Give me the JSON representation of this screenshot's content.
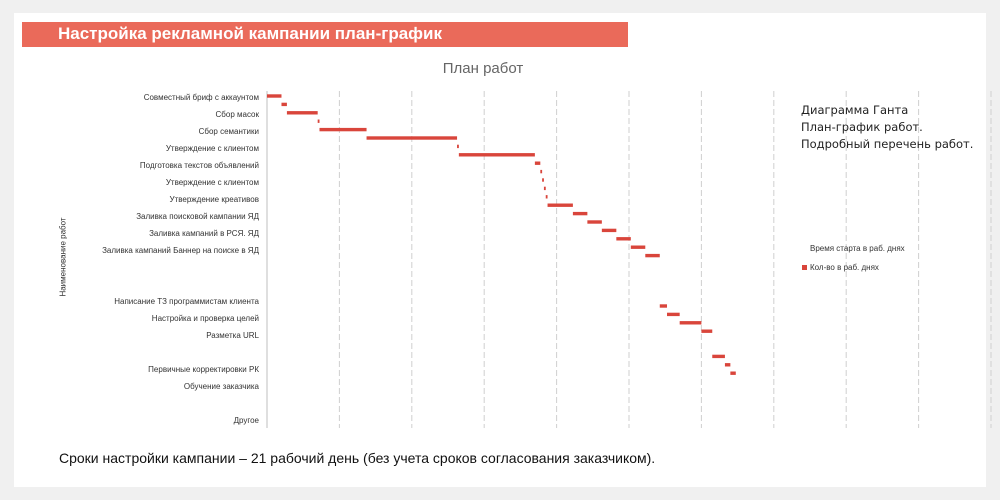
{
  "banner": {
    "title": "Настройка рекламной кампании план-график"
  },
  "chart_data": {
    "type": "bar",
    "subtype": "gantt",
    "title": "План работ",
    "ylabel": "Наименование работ",
    "xlabel": "",
    "grid": "vertical",
    "legend_position": "right",
    "legend": [
      "Время старта в раб. днях",
      "Кол-во в раб. днях"
    ],
    "bar_color": "#d9453b",
    "x_unit": "рабочие дни",
    "xlim": [
      0,
      21
    ],
    "categories": [
      "Совместный бриф с аккаунтом",
      "Сбор масок",
      "Сбор семантики",
      "Утверждение с клиентом",
      "Подготовка текстов объявлений",
      "Утверждение с клиентом",
      "Утверждение креативов",
      "Заливка поисковой кампании ЯД",
      "Заливка кампаний в РСЯ. ЯД",
      "Заливка кампаний Баннер на поиске в ЯД",
      "",
      "",
      "Написание ТЗ программистам клиента",
      "Настройка и проверка целей",
      "Разметка URL",
      "",
      "Первичные корректировки РК",
      "Обучение заказчика",
      "",
      "Другое"
    ],
    "tasks": [
      {
        "name": "Совместный бриф с аккаунтом",
        "start": 0.0,
        "duration": 0.4
      },
      {
        "name": "",
        "start": 0.4,
        "duration": 0.15
      },
      {
        "name": "Сбор масок",
        "start": 0.55,
        "duration": 0.85
      },
      {
        "name": "",
        "start": 1.4,
        "duration": 0.05
      },
      {
        "name": "Сбор семантики",
        "start": 1.45,
        "duration": 1.3
      },
      {
        "name": "",
        "start": 2.75,
        "duration": 2.5
      },
      {
        "name": "Утверждение с клиентом",
        "start": 5.25,
        "duration": 0.05
      },
      {
        "name": "Подготовка текстов объявлений",
        "start": 5.3,
        "duration": 2.1
      },
      {
        "name": "",
        "start": 7.4,
        "duration": 0.15
      },
      {
        "name": "Утверждение с клиентом",
        "start": 7.55,
        "duration": 0.05
      },
      {
        "name": "",
        "start": 7.6,
        "duration": 0.05
      },
      {
        "name": "Утверждение креативов",
        "start": 7.65,
        "duration": 0.05
      },
      {
        "name": "",
        "start": 7.7,
        "duration": 0.05
      },
      {
        "name": "Заливка поисковой кампании ЯД",
        "start": 7.75,
        "duration": 0.7
      },
      {
        "name": "",
        "start": 8.45,
        "duration": 0.4
      },
      {
        "name": "Заливка кампаний в РСЯ. ЯД",
        "start": 8.85,
        "duration": 0.4
      },
      {
        "name": "",
        "start": 9.25,
        "duration": 0.4
      },
      {
        "name": "Заливка кампаний Баннер на поиске в ЯД",
        "start": 9.65,
        "duration": 0.4
      },
      {
        "name": "",
        "start": 10.05,
        "duration": 0.4
      },
      {
        "name": "",
        "start": 10.45,
        "duration": 0.4
      },
      {
        "name": "",
        "start": 10.85,
        "duration": 0.0
      },
      {
        "name": "",
        "start": 10.85,
        "duration": 0.0
      },
      {
        "name": "",
        "start": 10.85,
        "duration": 0.0
      },
      {
        "name": "",
        "start": 10.85,
        "duration": 0.0
      },
      {
        "name": "",
        "start": 10.85,
        "duration": 0.0
      },
      {
        "name": "",
        "start": 10.85,
        "duration": 0.2
      },
      {
        "name": "Написание ТЗ программистам клиента",
        "start": 11.05,
        "duration": 0.35
      },
      {
        "name": "",
        "start": 11.4,
        "duration": 0.6
      },
      {
        "name": "Настройка и проверка целей",
        "start": 12.0,
        "duration": 0.3
      },
      {
        "name": "Разметка URL",
        "start": 12.3,
        "duration": 0.0
      },
      {
        "name": "",
        "start": 12.3,
        "duration": 0.0
      },
      {
        "name": "",
        "start": 12.3,
        "duration": 0.35
      },
      {
        "name": "Первичные корректировки РК",
        "start": 12.65,
        "duration": 0.15
      },
      {
        "name": "",
        "start": 12.8,
        "duration": 0.15
      },
      {
        "name": "Обучение заказчика",
        "start": 12.95,
        "duration": 0.0
      },
      {
        "name": "",
        "start": 12.95,
        "duration": 0.0
      },
      {
        "name": "",
        "start": 12.95,
        "duration": 0.0
      },
      {
        "name": "",
        "start": 12.95,
        "duration": 0.0
      },
      {
        "name": "Другое",
        "start": 12.95,
        "duration": 0.0
      }
    ]
  },
  "note": {
    "line1": "Диаграмма Ганта",
    "line2": "План-график работ.",
    "line3": "Подробный перечень работ."
  },
  "footer": {
    "text": "Сроки настройки кампании – 21 рабочий день (без учета сроков согласования заказчиком)."
  }
}
